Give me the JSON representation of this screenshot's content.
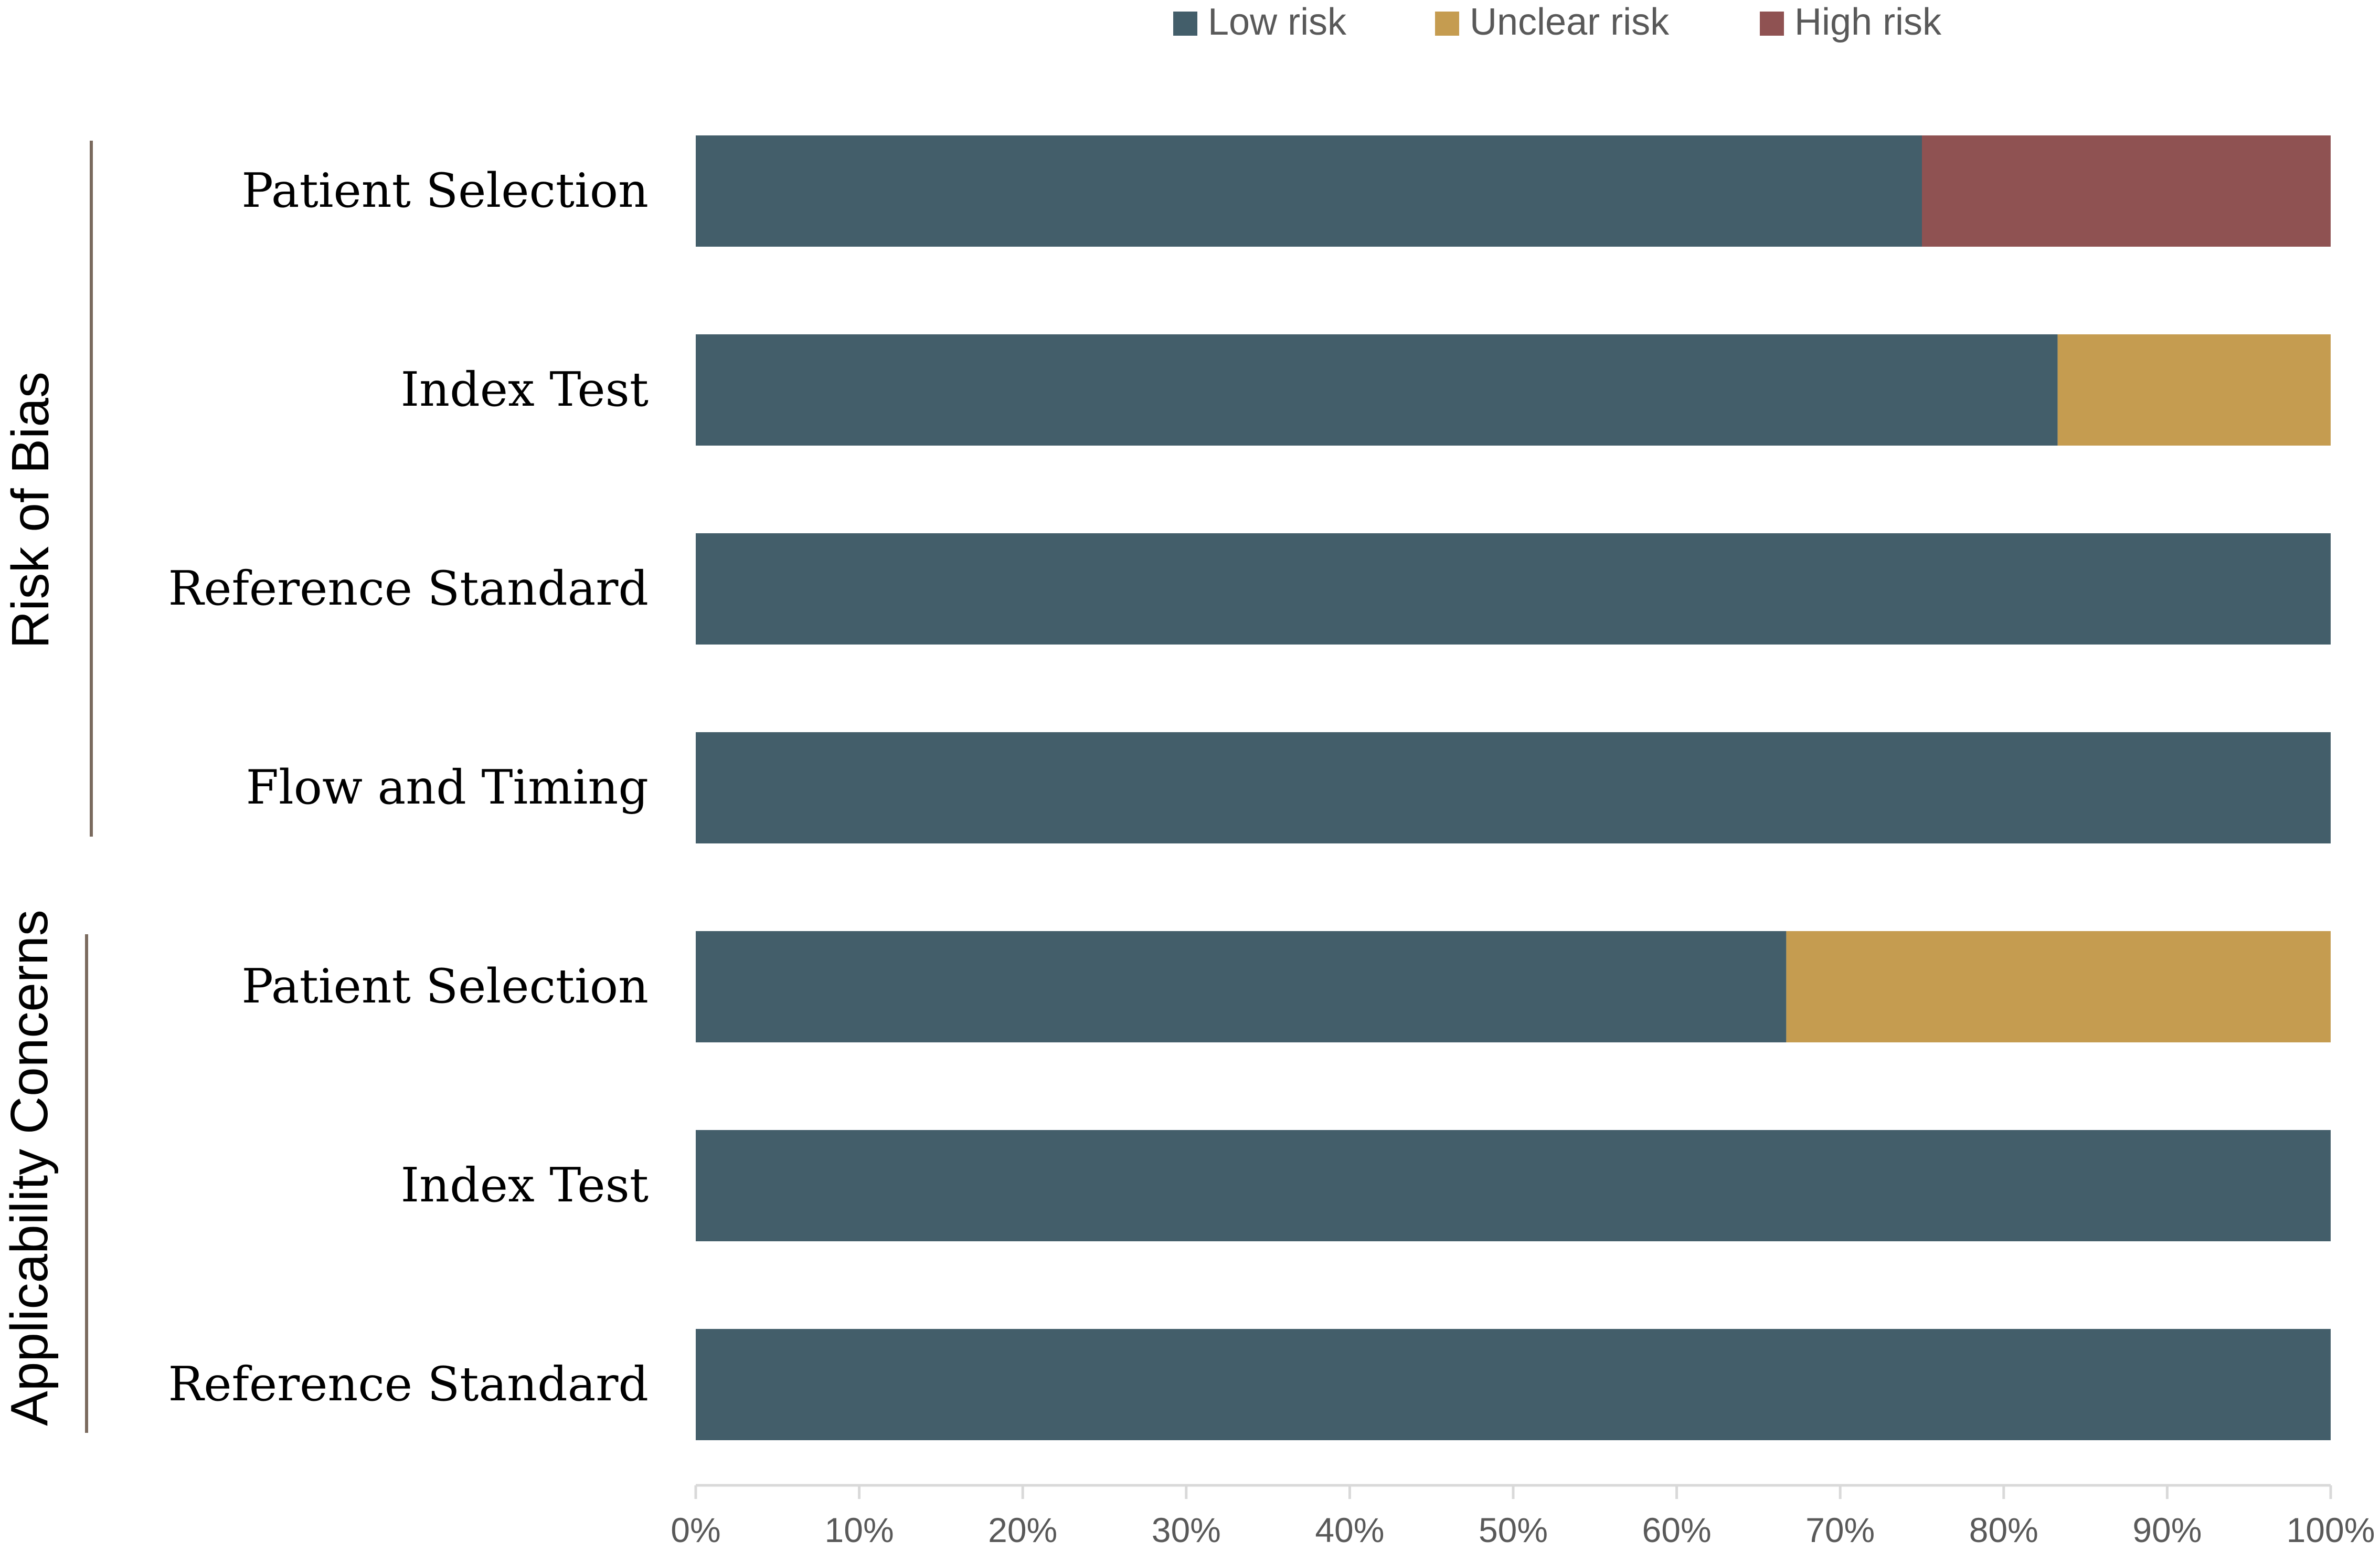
{
  "chart_data": {
    "type": "bar",
    "orientation": "horizontal",
    "stacked": true,
    "groups": [
      {
        "label": "Risk of Bias",
        "categories": [
          "Patient Selection",
          "Index Test",
          "Reference Standard",
          "Flow and Timing"
        ]
      },
      {
        "label": "Applicability Concerns",
        "categories": [
          "Patient Selection",
          "Index Test",
          "Reference Standard"
        ]
      }
    ],
    "categories": [
      "Patient Selection",
      "Index Test",
      "Reference Standard",
      "Flow and Timing",
      "Patient Selection",
      "Index Test",
      "Reference Standard"
    ],
    "series": [
      {
        "name": "Low risk",
        "color": "#435E6A",
        "values": [
          75,
          83.3,
          100,
          100,
          66.7,
          100,
          100
        ]
      },
      {
        "name": "Unclear risk",
        "color": "#C59C50",
        "values": [
          0,
          16.7,
          0,
          0,
          33.3,
          0,
          0
        ]
      },
      {
        "name": "High risk",
        "color": "#8F5252",
        "values": [
          25,
          0,
          0,
          0,
          0,
          0,
          0
        ]
      }
    ],
    "x_ticks": [
      "0%",
      "10%",
      "20%",
      "30%",
      "40%",
      "50%",
      "60%",
      "70%",
      "80%",
      "90%",
      "100%"
    ],
    "xlim": [
      0,
      100
    ],
    "grid": false,
    "legend_position": "top"
  }
}
